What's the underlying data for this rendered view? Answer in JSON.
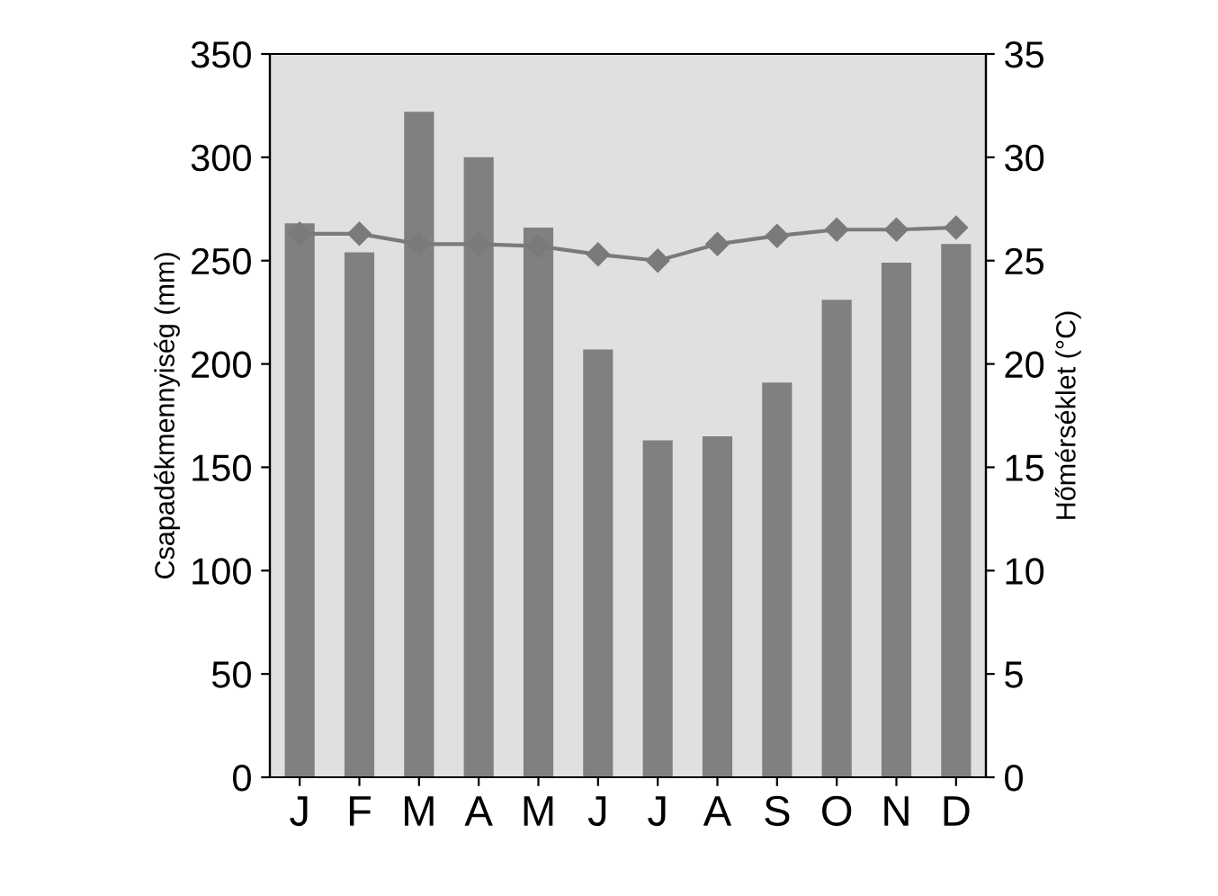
{
  "chart_data": {
    "type": "bar",
    "categories": [
      "J",
      "F",
      "M",
      "A",
      "M",
      "J",
      "J",
      "A",
      "S",
      "O",
      "N",
      "D"
    ],
    "ylabel": "Csapadékmennyiség (mm)",
    "y2label": "Hőmérséklet (°C)",
    "ylim": [
      0,
      350
    ],
    "yticks": [
      0,
      50,
      100,
      150,
      200,
      250,
      300,
      350
    ],
    "y2lim": [
      0,
      35
    ],
    "y2ticks": [
      0,
      5,
      10,
      15,
      20,
      25,
      30,
      35
    ],
    "series": [
      {
        "color": "#808080",
        "values": [
          268,
          254,
          322,
          300,
          266,
          207,
          163,
          165,
          191,
          231,
          249,
          258
        ]
      },
      {
        "type": "line",
        "axis": "y2",
        "color": "#7a7a7a",
        "marker": "diamond",
        "values": [
          26.3,
          26.3,
          25.8,
          25.8,
          25.7,
          25.3,
          25.0,
          25.8,
          26.2,
          26.5,
          26.5,
          26.6
        ]
      }
    ],
    "grid": false,
    "legend": false
  }
}
